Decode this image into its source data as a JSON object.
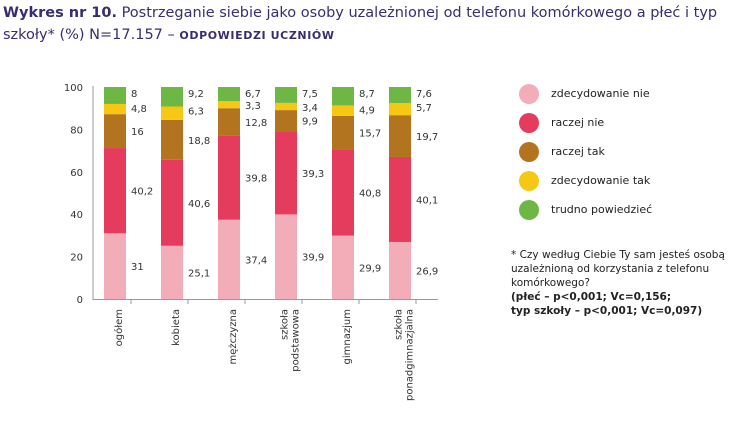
{
  "title": {
    "prefix": "Wykres nr 10.",
    "text": "Postrzeganie siebie jako osoby uzależnionej od telefonu komórkowego a płeć i typ szkoły* (%) N=17.157 –",
    "source": "ODPOWIEDZI UCZNIÓW"
  },
  "note": {
    "question": "* Czy według Ciebie Ty sam jesteś osobą uzależnioną od korzystania z telefonu komórkowego?",
    "stats_line1": "(płeć – p<0,001; Vc=0,156;",
    "stats_line2": "typ szkoły – p<0,001; Vc=0,097)"
  },
  "chart_data": {
    "type": "bar",
    "stacked": true,
    "categories": [
      "ogółem",
      "kobieta",
      "mężczyzna",
      "szkoła podstawowa",
      "gimnazjum",
      "szkoła ponadgimnazjalna"
    ],
    "category_lines": [
      [
        "ogółem"
      ],
      [
        "kobieta"
      ],
      [
        "mężczyzna"
      ],
      [
        "szkoła",
        "podstawowa"
      ],
      [
        "gimnazjum"
      ],
      [
        "szkoła",
        "ponadgimnazjalna"
      ]
    ],
    "series": [
      {
        "name": "zdecydowanie nie",
        "color": "#f2adb9",
        "values": [
          31,
          25.1,
          37.4,
          39.9,
          29.9,
          26.9
        ],
        "labels": [
          "31",
          "25,1",
          "37,4",
          "39,9",
          "29,9",
          "26,9"
        ]
      },
      {
        "name": "raczej nie",
        "color": "#e53b5c",
        "values": [
          40.2,
          40.6,
          39.8,
          39.3,
          40.8,
          40.1
        ],
        "labels": [
          "40,2",
          "40,6",
          "39,8",
          "39,3",
          "40,8",
          "40,1"
        ]
      },
      {
        "name": "raczej tak",
        "color": "#b3741f",
        "values": [
          16,
          18.8,
          12.8,
          9.9,
          15.7,
          19.7
        ],
        "labels": [
          "16",
          "18,8",
          "12,8",
          "9,9",
          "15,7",
          "19,7"
        ]
      },
      {
        "name": "zdecydowanie tak",
        "color": "#f6c813",
        "values": [
          4.8,
          6.3,
          3.3,
          3.4,
          4.9,
          5.7
        ],
        "labels": [
          "4,8",
          "6,3",
          "3,3",
          "3,4",
          "4,9",
          "5,7"
        ]
      },
      {
        "name": "trudno powiedzieć",
        "color": "#6fb745",
        "values": [
          8,
          9.2,
          6.7,
          7.5,
          8.7,
          7.6
        ],
        "labels": [
          "8",
          "9,2",
          "6,7",
          "7,5",
          "8,7",
          "7,6"
        ]
      }
    ],
    "ylim": [
      0,
      100
    ],
    "yticks": [
      0,
      20,
      40,
      60,
      80,
      100
    ],
    "grid": false,
    "legend_position": "right"
  }
}
